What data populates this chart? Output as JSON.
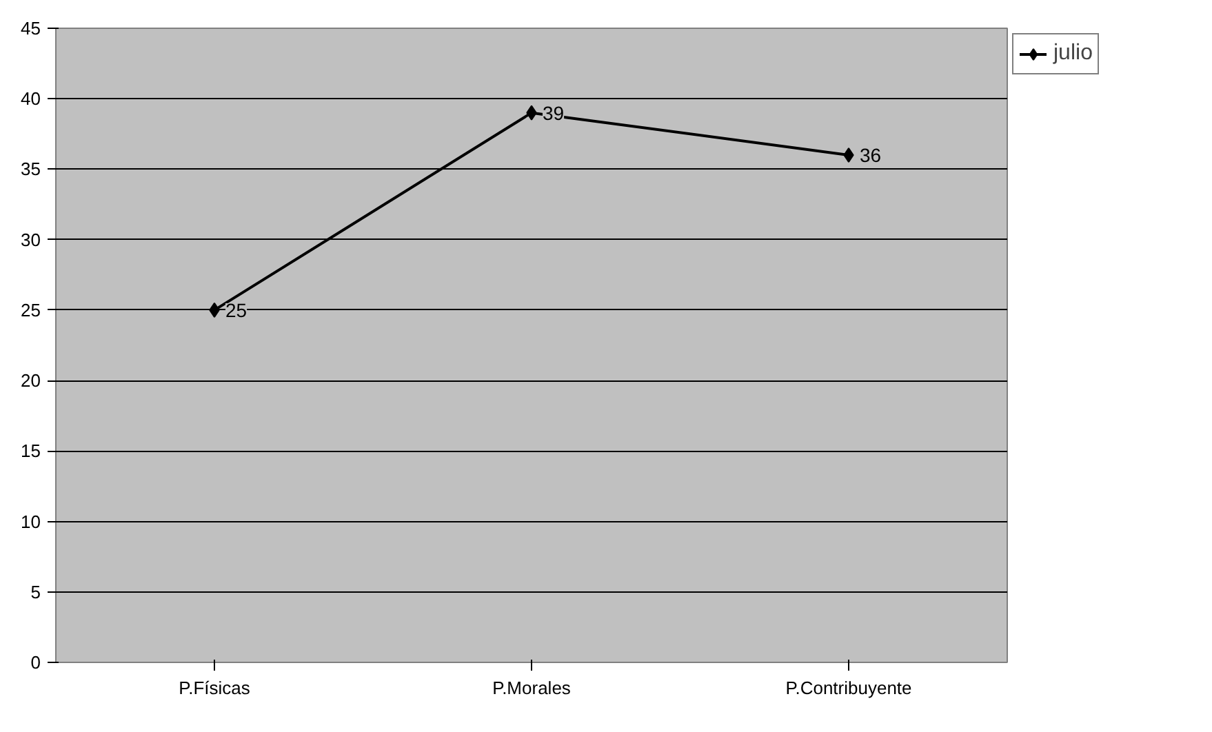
{
  "chart_data": {
    "type": "line",
    "categories": [
      "P.Físicas",
      "P.Morales",
      "P.Contribuyente"
    ],
    "series": [
      {
        "name": "julio",
        "color": "#000000",
        "values": [
          25,
          39,
          36
        ]
      }
    ],
    "ylim": [
      0,
      45
    ],
    "yticks": [
      0,
      5,
      10,
      15,
      20,
      25,
      30,
      35,
      40,
      45
    ],
    "grid": "y",
    "legend": "top right",
    "marker": "diamond",
    "line_style": "solid",
    "data_labels": true
  }
}
